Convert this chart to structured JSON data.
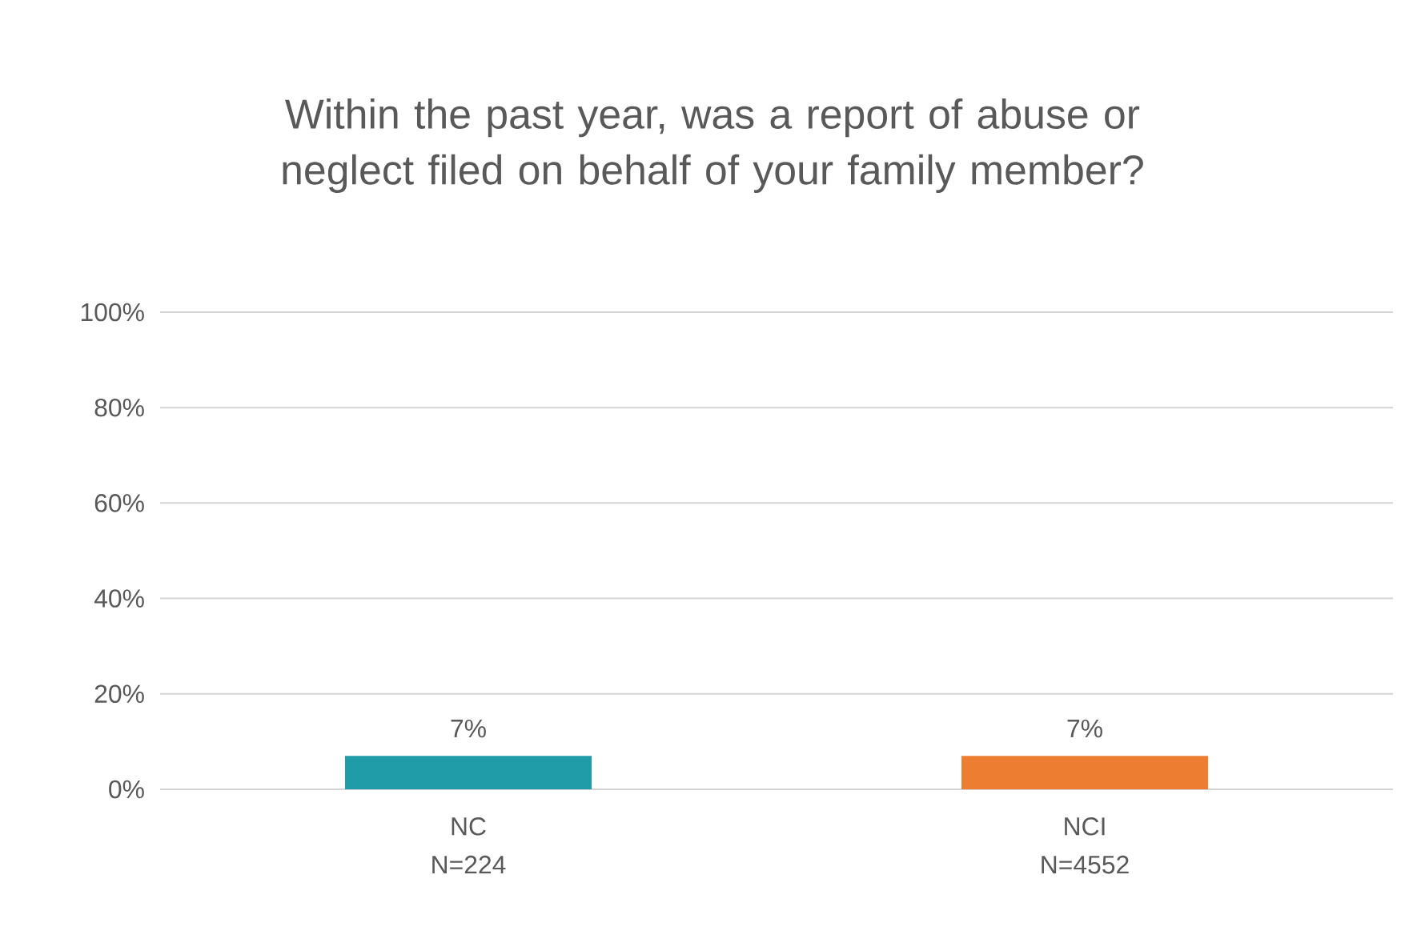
{
  "chart_data": {
    "type": "bar",
    "title": "Within the past year, was a report of abuse or neglect filed on behalf of your family member?",
    "categories": [
      "NC N=224",
      "NCI N=4552"
    ],
    "values": [
      7,
      7
    ],
    "colors": [
      "#209ca8",
      "#ed7d31"
    ],
    "value_labels": [
      "7%",
      "7%"
    ],
    "ylim": [
      0,
      100
    ],
    "yticks": [
      {
        "value": 0,
        "label": "0%"
      },
      {
        "value": 20,
        "label": "20%"
      },
      {
        "value": 40,
        "label": "40%"
      },
      {
        "value": 60,
        "label": "60%"
      },
      {
        "value": 80,
        "label": "80%"
      },
      {
        "value": 100,
        "label": "100%"
      }
    ],
    "grid": "y"
  }
}
